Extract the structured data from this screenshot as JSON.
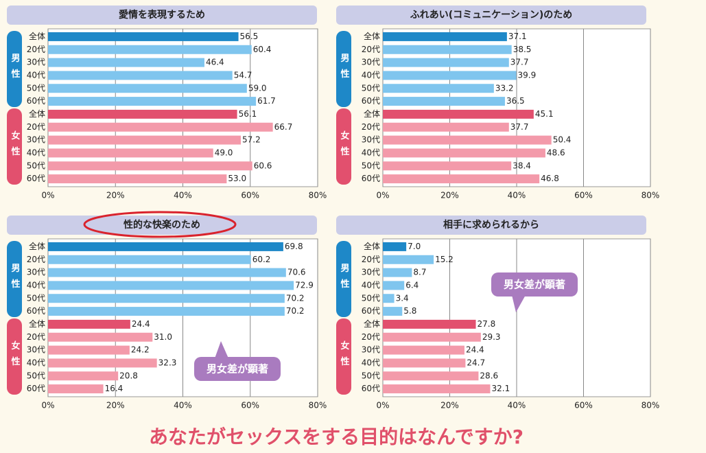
{
  "caption": "あなたがセックスをする目的はなんですか?",
  "chart_data": [
    {
      "type": "bar",
      "orientation": "horizontal",
      "title": "愛情を表現するため",
      "xlim": [
        0,
        80
      ],
      "xticks": [
        {
          "value": 0,
          "label": "0%"
        },
        {
          "value": 20,
          "label": "20%"
        },
        {
          "value": 40,
          "label": "40%"
        },
        {
          "value": 60,
          "label": "60%"
        },
        {
          "value": 80,
          "label": "80%"
        }
      ],
      "grid": true,
      "groups": [
        {
          "name": "男性",
          "color": "#1e88c8",
          "bar_color": "#7fc5ee",
          "categories": [
            "全体",
            "20代",
            "30代",
            "40代",
            "50代",
            "60代"
          ],
          "values": [
            56.5,
            60.4,
            46.4,
            54.7,
            59.0,
            61.7
          ],
          "value_labels": [
            "56.5",
            "60.4",
            "46.4",
            "54.7",
            "59.0",
            "61.7"
          ]
        },
        {
          "name": "女性",
          "color": "#e2506e",
          "bar_color": "#f39aaa",
          "categories": [
            "全体",
            "20代",
            "30代",
            "40代",
            "50代",
            "60代"
          ],
          "values": [
            56.1,
            66.7,
            57.2,
            49.0,
            60.6,
            53.0
          ],
          "value_labels": [
            "56.1",
            "66.7",
            "57.2",
            "49.0",
            "60.6",
            "53.0"
          ]
        }
      ]
    },
    {
      "type": "bar",
      "orientation": "horizontal",
      "title": "ふれあい(コミュニケーション)のため",
      "xlim": [
        0,
        80
      ],
      "xticks": [
        {
          "value": 0,
          "label": "0%"
        },
        {
          "value": 20,
          "label": "20%"
        },
        {
          "value": 40,
          "label": "40%"
        },
        {
          "value": 60,
          "label": "60%"
        },
        {
          "value": 80,
          "label": "80%"
        }
      ],
      "grid": true,
      "groups": [
        {
          "name": "男性",
          "color": "#1e88c8",
          "bar_color": "#7fc5ee",
          "categories": [
            "全体",
            "20代",
            "30代",
            "40代",
            "50代",
            "60代"
          ],
          "values": [
            37.1,
            38.5,
            37.7,
            39.9,
            33.2,
            36.5
          ],
          "value_labels": [
            "37.1",
            "38.5",
            "37.7",
            "39.9",
            "33.2",
            "36.5"
          ]
        },
        {
          "name": "女性",
          "color": "#e2506e",
          "bar_color": "#f39aaa",
          "categories": [
            "全体",
            "20代",
            "30代",
            "40代",
            "50代",
            "60代"
          ],
          "values": [
            45.1,
            37.7,
            50.4,
            48.6,
            38.4,
            46.8
          ],
          "value_labels": [
            "45.1",
            "37.7",
            "50.4",
            "48.6",
            "38.4",
            "46.8"
          ]
        }
      ]
    },
    {
      "type": "bar",
      "orientation": "horizontal",
      "title": "性的な快楽のため",
      "title_circled": true,
      "annotation": "男女差が顕著",
      "xlim": [
        0,
        80
      ],
      "xticks": [
        {
          "value": 0,
          "label": "0%"
        },
        {
          "value": 20,
          "label": "20%"
        },
        {
          "value": 40,
          "label": "40%"
        },
        {
          "value": 60,
          "label": "60%"
        },
        {
          "value": 80,
          "label": "80%"
        }
      ],
      "grid": true,
      "groups": [
        {
          "name": "男性",
          "color": "#1e88c8",
          "bar_color": "#7fc5ee",
          "categories": [
            "全体",
            "20代",
            "30代",
            "40代",
            "50代",
            "60代"
          ],
          "values": [
            69.8,
            60.2,
            70.6,
            72.9,
            70.2,
            70.2
          ],
          "value_labels": [
            "69.8",
            "60.2",
            "70.6",
            "72.9",
            "70.2",
            "70.2"
          ]
        },
        {
          "name": "女性",
          "color": "#e2506e",
          "bar_color": "#f39aaa",
          "categories": [
            "全体",
            "20代",
            "30代",
            "40代",
            "50代",
            "60代"
          ],
          "values": [
            24.4,
            31.0,
            24.2,
            32.3,
            20.8,
            16.4
          ],
          "value_labels": [
            "24.4",
            "31.0",
            "24.2",
            "32.3",
            "20.8",
            "16.4"
          ]
        }
      ]
    },
    {
      "type": "bar",
      "orientation": "horizontal",
      "title": "相手に求められるから",
      "annotation": "男女差が顕著",
      "xlim": [
        0,
        80
      ],
      "xticks": [
        {
          "value": 0,
          "label": "0%"
        },
        {
          "value": 20,
          "label": "20%"
        },
        {
          "value": 40,
          "label": "40%"
        },
        {
          "value": 60,
          "label": "60%"
        },
        {
          "value": 80,
          "label": "80%"
        }
      ],
      "grid": true,
      "groups": [
        {
          "name": "男性",
          "color": "#1e88c8",
          "bar_color": "#7fc5ee",
          "categories": [
            "全体",
            "20代",
            "30代",
            "40代",
            "50代",
            "60代"
          ],
          "values": [
            7.0,
            15.2,
            8.7,
            6.4,
            3.4,
            5.8
          ],
          "value_labels": [
            "7.0",
            "15.2",
            "8.7",
            "6.4",
            "3.4",
            "5.8"
          ]
        },
        {
          "name": "女性",
          "color": "#e2506e",
          "bar_color": "#f39aaa",
          "categories": [
            "全体",
            "20代",
            "30代",
            "40代",
            "50代",
            "60代"
          ],
          "values": [
            27.8,
            29.3,
            24.4,
            24.7,
            28.6,
            32.1
          ],
          "value_labels": [
            "27.8",
            "29.3",
            "24.4",
            "24.7",
            "28.6",
            "32.1"
          ]
        }
      ]
    }
  ]
}
